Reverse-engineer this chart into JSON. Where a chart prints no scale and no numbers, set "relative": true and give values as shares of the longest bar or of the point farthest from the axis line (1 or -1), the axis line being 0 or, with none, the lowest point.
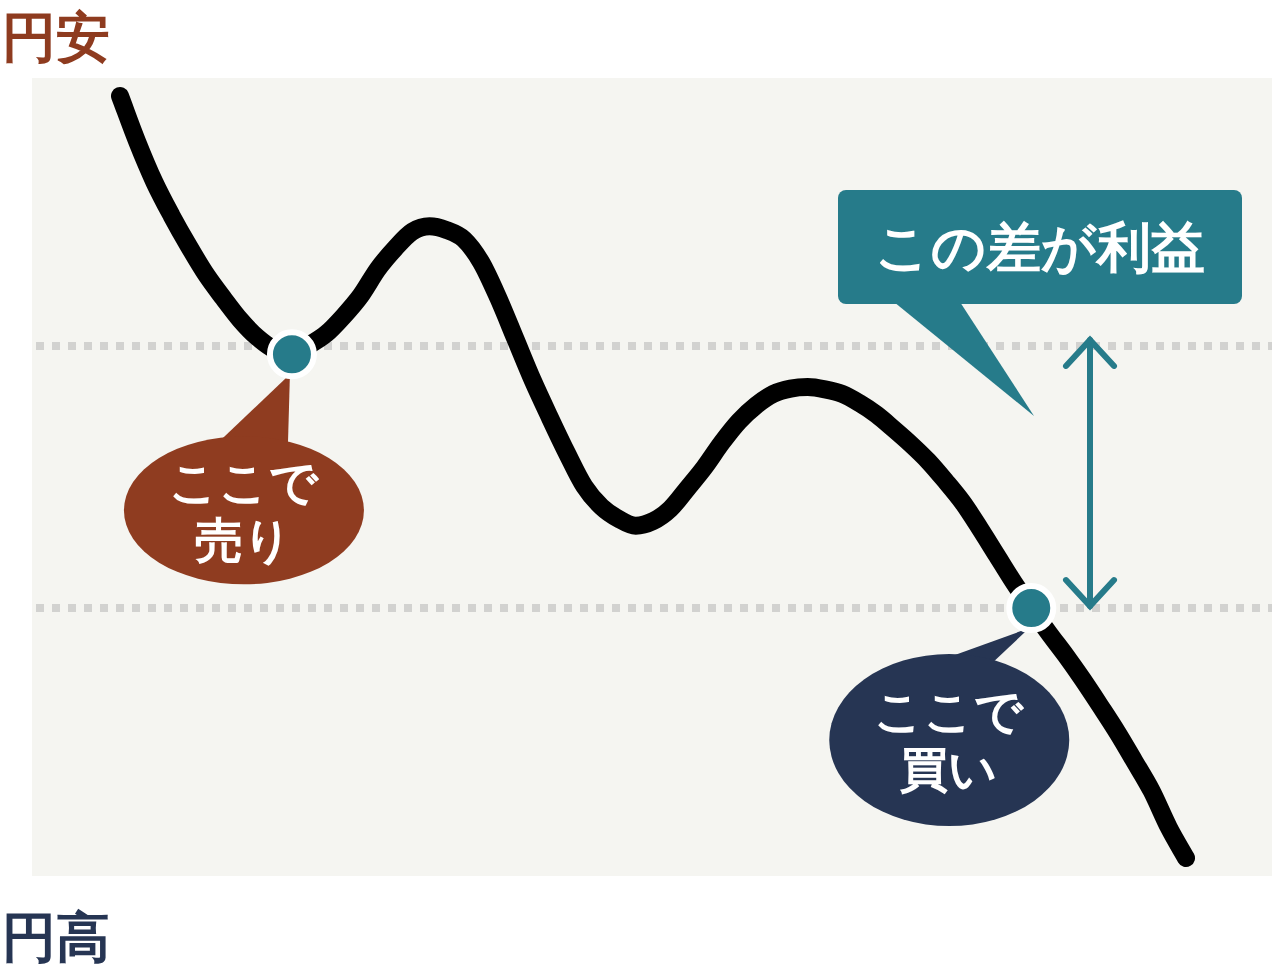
{
  "chart_data": {
    "type": "line",
    "relative": true,
    "categories": [
      null,
      null,
      null,
      null,
      null,
      null,
      null,
      null,
      null,
      null,
      null,
      null,
      null,
      null,
      null,
      null,
      null,
      null,
      null,
      null,
      null,
      null,
      null,
      null,
      null,
      null,
      null,
      null,
      null,
      null,
      null,
      null,
      null,
      null,
      null,
      null,
      null,
      null,
      null,
      null,
      null,
      null,
      null,
      null,
      null,
      null,
      null,
      null,
      null,
      null,
      null,
      null,
      null,
      null,
      null,
      null,
      null,
      null,
      null,
      null,
      null,
      null,
      null
    ],
    "series": [
      {
        "color": "#000000",
        "values": [
          1.0,
          0.94,
          0.887,
          0.843,
          0.803,
          0.766,
          0.735,
          0.706,
          0.683,
          0.667,
          0.661,
          0.673,
          0.688,
          0.711,
          0.738,
          0.773,
          0.8,
          0.822,
          0.829,
          0.824,
          0.812,
          0.782,
          0.735,
          0.681,
          0.627,
          0.578,
          0.531,
          0.488,
          0.461,
          0.445,
          0.436,
          0.442,
          0.458,
          0.485,
          0.513,
          0.545,
          0.573,
          0.594,
          0.609,
          0.616,
          0.618,
          0.615,
          0.609,
          0.597,
          0.582,
          0.563,
          0.543,
          0.521,
          0.495,
          0.467,
          0.433,
          0.397,
          0.361,
          0.328,
          0.296,
          0.266,
          0.234,
          0.2,
          0.165,
          0.127,
          0.088,
          0.04,
          0.0
        ]
      }
    ],
    "ref_lines": [
      {
        "axis": "y",
        "value": 0.672,
        "color": "#d2d2d0",
        "line_style": "dotted"
      },
      {
        "axis": "y",
        "value": 0.328,
        "color": "#d2d2d0",
        "line_style": "dotted"
      }
    ],
    "annotations": [
      "円安",
      "円高",
      "この差が利益",
      {
        "text": "ここで売り",
        "y": 0.661
      },
      {
        "text": "ここで買い",
        "y": 0.328
      }
    ]
  }
}
